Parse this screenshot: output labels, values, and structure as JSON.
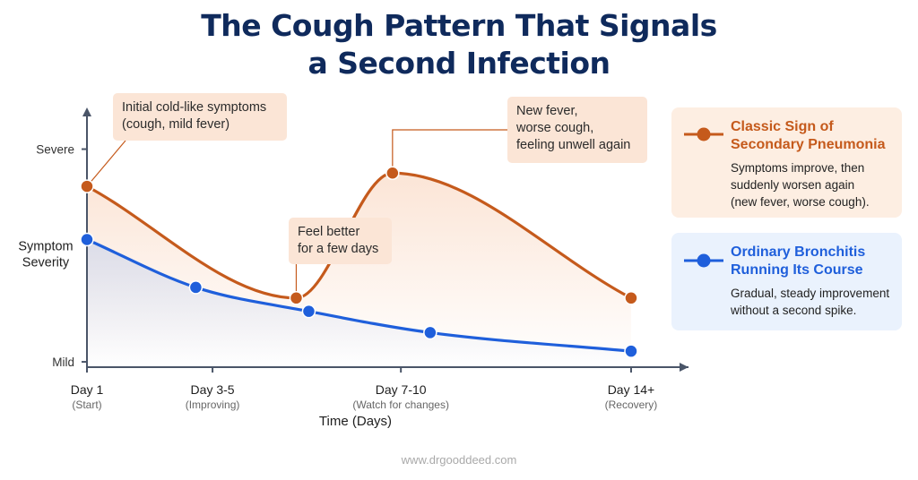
{
  "title_lines": [
    "The Cough Pattern That Signals",
    "a Second Infection"
  ],
  "watermark": "www.drgooddeed.com",
  "colors": {
    "pneumonia": "#c55a1c",
    "bronchitis": "#1f5fdb",
    "title": "#0f2a5c",
    "callout_bg": "#fbe5d6",
    "axis": "#4a5568"
  },
  "chart_data": {
    "type": "line",
    "title": "The Cough Pattern That Signals a Second Infection",
    "xlabel": "Time (Days)",
    "ylabel": [
      "Symptom",
      "Severity"
    ],
    "x_ticks": [
      {
        "day": 1,
        "label": "Day 1",
        "sub": "(Start)"
      },
      {
        "day": 4,
        "label": "Day 3-5",
        "sub": "(Improving)"
      },
      {
        "day": 8.5,
        "label": "Day 7-10",
        "sub": "(Watch for changes)"
      },
      {
        "day": 14,
        "label": "Day 14+",
        "sub": "(Recovery)"
      }
    ],
    "y_ticks": [
      {
        "value": 9,
        "label": "Severe"
      },
      {
        "value": 1,
        "label": "Mild"
      }
    ],
    "xlim": [
      1,
      15.2
    ],
    "ylim": [
      0.8,
      10.5
    ],
    "grid": false,
    "legend_placement": "right",
    "series": [
      {
        "name": "Classic Sign of Secondary Pneumonia",
        "color": "#c55a1c",
        "points": [
          [
            1,
            7.6
          ],
          [
            6,
            3.4
          ],
          [
            8.3,
            8.1
          ],
          [
            14,
            3.4
          ]
        ]
      },
      {
        "name": "Ordinary Bronchitis Running Its Course",
        "color": "#1f5fdb",
        "points": [
          [
            1,
            5.6
          ],
          [
            3.6,
            3.8
          ],
          [
            6.3,
            2.9
          ],
          [
            9.2,
            2.1
          ],
          [
            14,
            1.4
          ]
        ]
      }
    ],
    "annotations": [
      {
        "text": [
          "Initial cold-like symptoms",
          "(cough, mild fever)"
        ],
        "series": 0,
        "point": 0
      },
      {
        "text": [
          "Feel better",
          "for a few days"
        ],
        "series": 0,
        "point": 1
      },
      {
        "text": [
          "New fever,",
          "worse cough,",
          "feeling unwell again"
        ],
        "series": 0,
        "point": 2
      }
    ]
  },
  "legend": [
    {
      "title": [
        "Classic Sign of",
        "Secondary Pneumonia"
      ],
      "description": [
        "Symptoms improve, then",
        "suddenly worsen again",
        "(new fever, worse cough)."
      ],
      "color": "#c55a1c",
      "bg": "#fdeee2"
    },
    {
      "title": [
        "Ordinary Bronchitis",
        "Running Its Course"
      ],
      "description": [
        "Gradual, steady improvement",
        "without a second spike."
      ],
      "color": "#1f5fdb",
      "bg": "#eaf2fd"
    }
  ]
}
